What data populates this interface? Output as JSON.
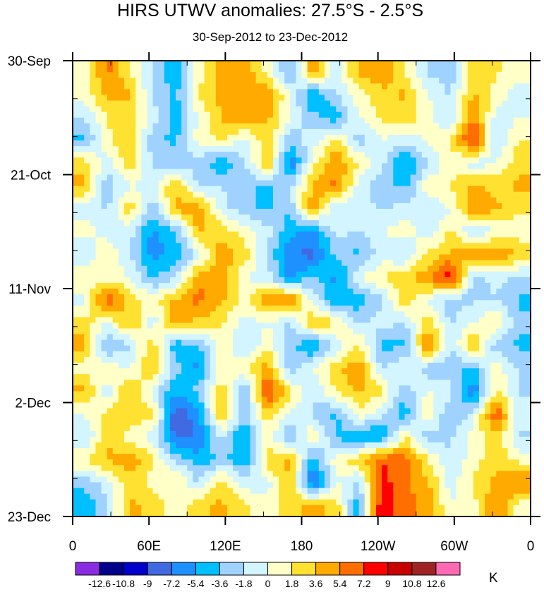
{
  "chart_data": {
    "type": "heatmap",
    "title": "HIRS UTWV anomalies: 27.5°S - 2.5°S",
    "subtitle": "30-Sep-2012 to 23-Dec-2012",
    "xlabel": "",
    "ylabel": "",
    "x_tick_labels": [
      "0",
      "60E",
      "120E",
      "180",
      "120W",
      "60W",
      "0"
    ],
    "x_range_deg_east": [
      0,
      360
    ],
    "y_tick_labels": [
      "30-Sep",
      "21-Oct",
      "11-Nov",
      "2-Dec",
      "23-Dec"
    ],
    "y_range_days": [
      0,
      84
    ],
    "colorbar": {
      "unit": "K",
      "levels": [
        -12.6,
        -10.8,
        -9,
        -7.2,
        -5.4,
        -3.6,
        -1.8,
        0,
        1.8,
        3.6,
        5.4,
        7.2,
        9,
        10.8,
        12.6
      ],
      "level_labels": [
        "-12.6",
        "-10.8",
        "-9",
        "-7.2",
        "-5.4",
        "-3.6",
        "-1.8",
        "0",
        "1.8",
        "3.6",
        "5.4",
        "7.2",
        "9",
        "10.8",
        "12.6"
      ],
      "colors": [
        "#8a2be2",
        "#00008b",
        "#0000cd",
        "#4169e1",
        "#1e90ff",
        "#00bfff",
        "#a0d2ff",
        "#d2f5ff",
        "#ffffc8",
        "#ffe132",
        "#ffaa00",
        "#ff6e00",
        "#ff0000",
        "#c80000",
        "#a02323",
        "#ff69b4"
      ]
    },
    "values": [
      [
        0.5,
        6,
        2,
        -2,
        -5,
        1,
        4,
        5,
        1,
        -4,
        5,
        -1,
        4,
        5,
        2,
        -2,
        -3,
        3,
        2,
        1
      ],
      [
        0.5,
        4,
        4,
        -2,
        -4,
        2,
        4,
        5,
        5,
        0,
        -6,
        -2,
        1,
        3,
        4,
        0,
        -2,
        4,
        1,
        -1
      ],
      [
        -2,
        2,
        3,
        -1,
        -5,
        0,
        4,
        5,
        4,
        0,
        -3,
        -5,
        0,
        2,
        3,
        1,
        -2,
        6,
        -1,
        0
      ],
      [
        -4,
        1,
        4,
        -3,
        -4,
        1,
        2,
        -1,
        3,
        -3,
        -1,
        3,
        -3,
        0,
        -1,
        0,
        2,
        8,
        -2,
        2
      ],
      [
        3,
        -1,
        3,
        -2,
        -3,
        -3,
        -5,
        -2,
        4,
        -7,
        1,
        5,
        2,
        -1,
        -6,
        -2,
        1,
        -1,
        0,
        3
      ],
      [
        4,
        -3,
        0,
        -1,
        4,
        -2,
        -2,
        -3,
        -4,
        -2,
        4,
        6,
        -1,
        -3,
        -4,
        1,
        2,
        4,
        3,
        4
      ],
      [
        -1,
        -2,
        3,
        -3,
        4,
        5,
        -1,
        -3,
        -4,
        -3,
        5,
        -2,
        -1,
        -2,
        -1,
        -2,
        0,
        5,
        4,
        2
      ],
      [
        1,
        -1,
        -1,
        -6,
        -4,
        4,
        3,
        1,
        -1,
        -5,
        -6,
        -1,
        -2,
        0,
        1,
        -1,
        2,
        -2,
        0,
        1
      ],
      [
        -2,
        2,
        -2,
        -6,
        -5,
        -1,
        5,
        3,
        -2,
        -7,
        -8,
        -3,
        -4,
        -1,
        -2,
        2,
        4,
        5,
        6,
        3
      ],
      [
        2,
        1,
        0,
        -4,
        -2,
        5,
        5,
        0,
        -1,
        -6,
        -3,
        -6,
        0,
        2,
        3,
        5,
        9,
        -3,
        -1,
        -2
      ],
      [
        -1,
        7,
        3,
        1,
        4,
        6,
        4,
        1,
        5,
        6,
        -1,
        -5,
        -5,
        -2,
        3,
        0,
        -3,
        -2,
        -2,
        -4
      ],
      [
        3,
        0,
        4,
        -1,
        5,
        3,
        2,
        -1,
        0,
        -2,
        4,
        2,
        -2,
        -1,
        -2,
        3,
        -2,
        0,
        2,
        -3
      ],
      [
        4,
        -4,
        -2,
        3,
        -5,
        -4,
        1,
        -2,
        1,
        -3,
        -6,
        -1,
        2,
        -4,
        -4,
        6,
        -2,
        4,
        -3,
        -4
      ],
      [
        1,
        1,
        0,
        4,
        -3,
        -6,
        1,
        1,
        5,
        -3,
        0,
        3,
        5,
        -2,
        0,
        -3,
        -3,
        -4,
        1,
        -2
      ],
      [
        4,
        -1,
        4,
        -1,
        -5,
        -3,
        3,
        -4,
        8,
        2,
        -2,
        2,
        4,
        2,
        -3,
        0,
        -1,
        -7,
        2,
        -2
      ],
      [
        0,
        2,
        3,
        3,
        -9,
        -6,
        4,
        -3,
        3,
        0,
        -2,
        -4,
        1,
        -1,
        -5,
        2,
        -4,
        -1,
        7,
        -1
      ],
      [
        -2,
        3,
        1,
        -1,
        -8,
        -7,
        -1,
        -6,
        1,
        -4,
        2,
        -4,
        -5,
        -6,
        2,
        -3,
        -2,
        1,
        3,
        -2
      ],
      [
        2,
        4,
        5,
        2,
        -2,
        -5,
        -3,
        -5,
        3,
        4,
        -5,
        1,
        3,
        7,
        6,
        2,
        -2,
        1,
        3,
        1
      ],
      [
        -3,
        -1,
        3,
        1,
        2,
        -2,
        3,
        -1,
        -1,
        4,
        -8,
        0,
        -2,
        8,
        6,
        4,
        -1,
        2,
        4,
        6
      ],
      [
        -5,
        -2,
        4,
        3,
        0,
        3,
        4,
        2,
        1,
        3,
        4,
        3,
        -5,
        9,
        6,
        5,
        0,
        1,
        6,
        1
      ]
    ]
  }
}
